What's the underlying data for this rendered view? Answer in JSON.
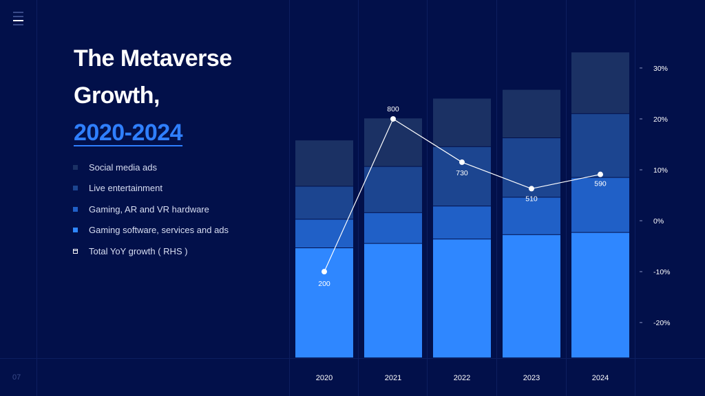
{
  "page": {
    "page_number": "07"
  },
  "title": {
    "line1": "The Metaverse",
    "line2": "Growth,",
    "line3": "2020-2024"
  },
  "legend": [
    {
      "label": "Social media ads",
      "color": "#1b3164"
    },
    {
      "label": "Live entertainment",
      "color": "#1c4590"
    },
    {
      "label": "Gaming, AR and VR hardware",
      "color": "#2060c7"
    },
    {
      "label": "Gaming software, services and ads",
      "color": "#2f87ff"
    },
    {
      "label": "Total YoY growth ( RHS )",
      "color": "#ffffff"
    }
  ],
  "chart_data": {
    "type": "bar",
    "stacked": true,
    "categories": [
      "2020",
      "2021",
      "2022",
      "2023",
      "2024"
    ],
    "series": [
      {
        "name": "Gaming software, services and ads",
        "values": [
          50,
          52,
          54,
          56,
          57
        ],
        "color": "#2f87ff"
      },
      {
        "name": "Gaming, AR and VR hardware",
        "values": [
          13,
          14,
          15,
          17,
          25
        ],
        "color": "#2060c7"
      },
      {
        "name": "Live entertainment",
        "values": [
          15,
          21,
          27,
          27,
          29
        ],
        "color": "#1c4590"
      },
      {
        "name": "Social media ads",
        "values": [
          21,
          22,
          22,
          22,
          28
        ],
        "color": "#1b3164"
      }
    ],
    "line_series": {
      "name": "Total YoY growth ( RHS )",
      "values": [
        -10,
        20,
        11.5,
        6.3,
        9.1
      ],
      "labels": [
        "200",
        "800",
        "730",
        "510",
        "590"
      ],
      "color": "#ffffff"
    },
    "y2_ticks": [
      "30%",
      "20%",
      "10%",
      "0%",
      "-10%",
      "-20%"
    ],
    "y2_tick_values": [
      30,
      20,
      10,
      0,
      -10,
      -20
    ],
    "ylim": [
      0,
      140
    ],
    "y2lim": [
      -27,
      33.5
    ],
    "grid": false,
    "legend_placement": "left"
  }
}
